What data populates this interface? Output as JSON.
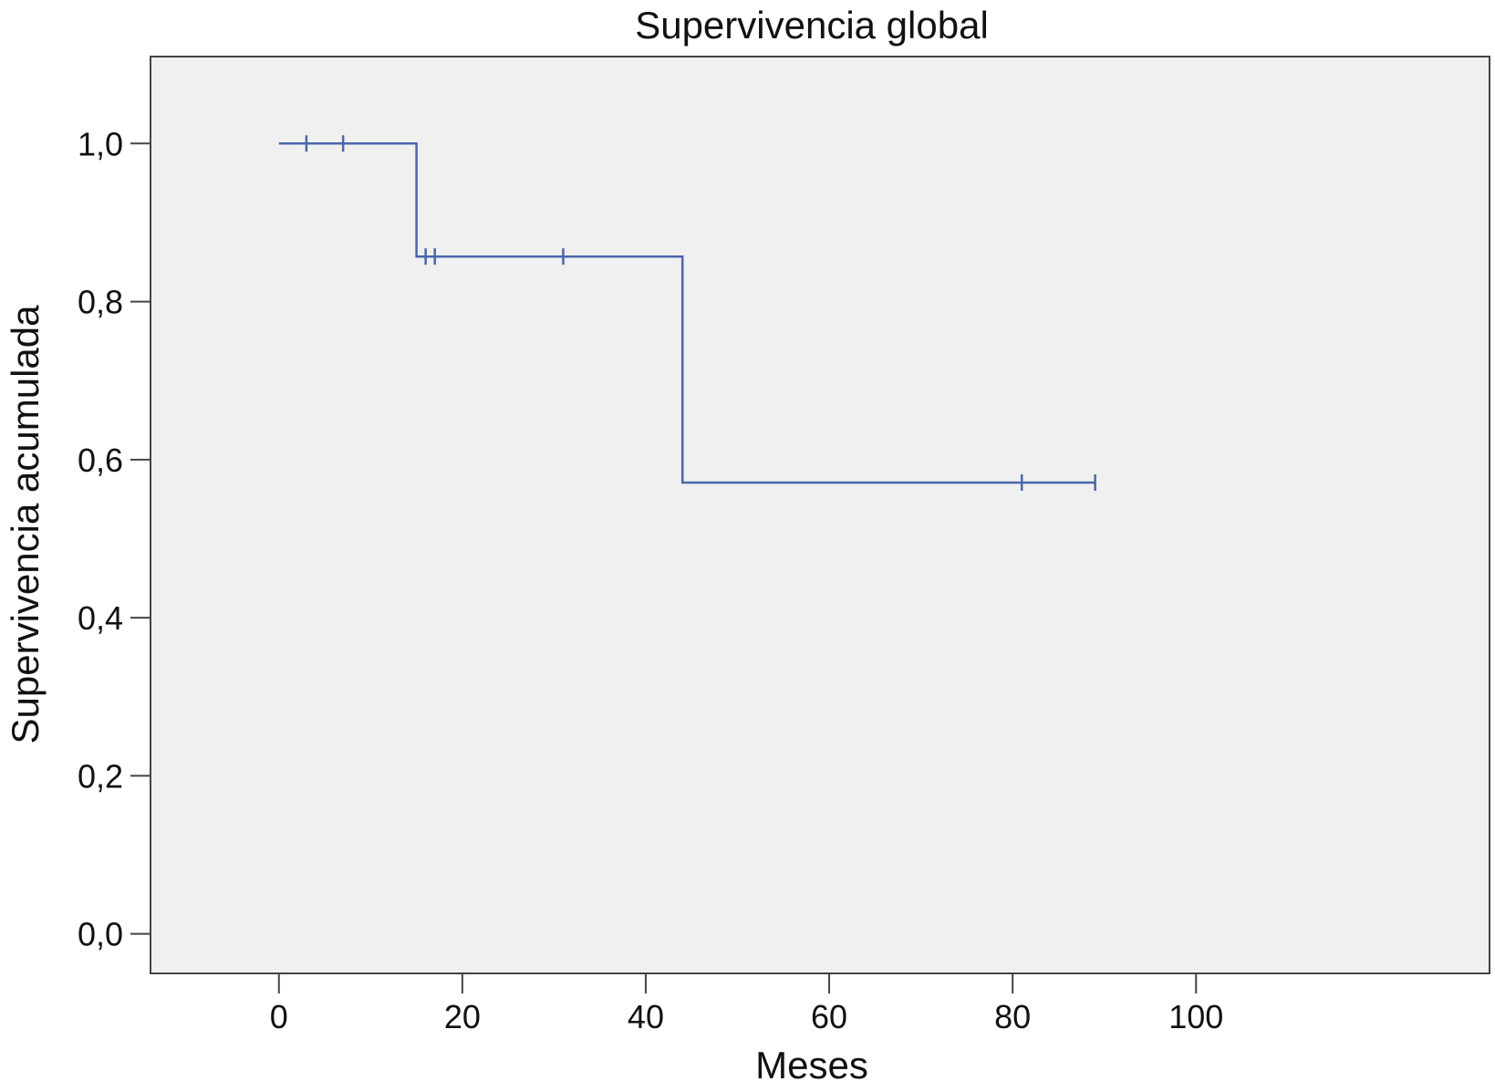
{
  "chart_data": {
    "type": "line",
    "subtype": "kaplan-meier-step",
    "title": "Supervivencia global",
    "xlabel": "Meses",
    "ylabel": "Supervivencia acumulada",
    "xlim": [
      -14,
      132
    ],
    "ylim": [
      -0.05,
      1.11
    ],
    "x_ticks": [
      0,
      20,
      40,
      60,
      80,
      100
    ],
    "x_tick_labels": [
      "0",
      "20",
      "40",
      "60",
      "80",
      "100"
    ],
    "y_ticks": [
      0.0,
      0.2,
      0.4,
      0.6,
      0.8,
      1.0
    ],
    "y_tick_labels": [
      "0,0",
      "0,2",
      "0,4",
      "0,6",
      "0,8",
      "1,0"
    ],
    "grid": false,
    "legend": "none",
    "series": [
      {
        "steps": [
          {
            "x": 0,
            "y": 1.0
          },
          {
            "x": 15,
            "y": 1.0
          },
          {
            "x": 15,
            "y": 0.857
          },
          {
            "x": 44,
            "y": 0.857
          },
          {
            "x": 44,
            "y": 0.571
          },
          {
            "x": 89,
            "y": 0.571
          }
        ],
        "censored": [
          {
            "x": 3,
            "y": 1.0
          },
          {
            "x": 7,
            "y": 1.0
          },
          {
            "x": 16,
            "y": 0.857
          },
          {
            "x": 17,
            "y": 0.857
          },
          {
            "x": 31,
            "y": 0.857
          },
          {
            "x": 81,
            "y": 0.571
          },
          {
            "x": 89,
            "y": 0.571
          }
        ],
        "color": "#4a66ac"
      }
    ],
    "colors": {
      "plot_background": "#f0f0f0",
      "frame": "#444444",
      "line": "#4a66ac"
    }
  }
}
